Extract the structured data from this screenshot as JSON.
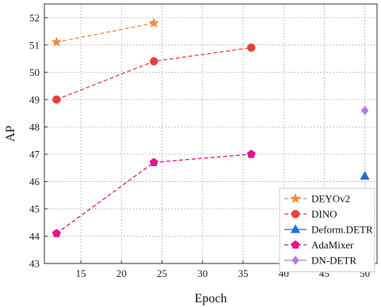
{
  "chart_data": {
    "type": "line",
    "title": "",
    "xlabel": "Epoch",
    "ylabel": "AP",
    "xlim": [
      10.5,
      51.5
    ],
    "ylim": [
      43,
      52.5
    ],
    "xticks": [
      15,
      20,
      25,
      30,
      35,
      40,
      45,
      50
    ],
    "yticks": [
      43,
      44,
      45,
      46,
      47,
      48,
      49,
      50,
      51,
      52
    ],
    "grid": true,
    "legend_position": "bottom-right",
    "series": [
      {
        "name": "DEYOv2",
        "color": "#f08a3c",
        "marker": "star",
        "line": "dashed",
        "points": [
          [
            12,
            51.1
          ],
          [
            24,
            51.8
          ]
        ]
      },
      {
        "name": "DINO",
        "color": "#e8403a",
        "marker": "circle",
        "line": "dashed",
        "points": [
          [
            12,
            49.0
          ],
          [
            24,
            50.4
          ],
          [
            36,
            50.9
          ]
        ]
      },
      {
        "name": "Deform.DETR",
        "color": "#1f6fd6",
        "marker": "triangle",
        "line": "solid",
        "points": [
          [
            50,
            46.2
          ]
        ]
      },
      {
        "name": "AdaMixer",
        "color": "#e6148a",
        "marker": "pentagon",
        "line": "dashed",
        "points": [
          [
            12,
            44.1
          ],
          [
            24,
            46.7
          ],
          [
            36,
            47.0
          ]
        ]
      },
      {
        "name": "DN-DETR",
        "color": "#b07fe0",
        "marker": "diamond",
        "line": "solid",
        "points": [
          [
            50,
            48.6
          ]
        ]
      }
    ]
  }
}
